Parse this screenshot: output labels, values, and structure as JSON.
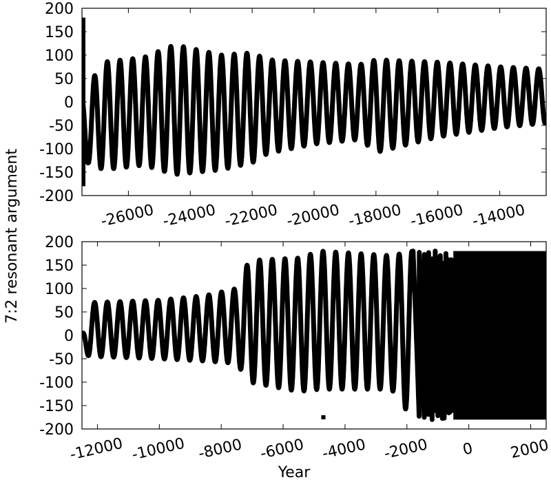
{
  "figure": {
    "ylabel": "7:2 resonant argument",
    "xlabel": "Year"
  },
  "chart_data": [
    {
      "type": "line",
      "panel": "top",
      "xlim": [
        -27500,
        -12500
      ],
      "ylim": [
        -200,
        200
      ],
      "yticks": [
        "200",
        "150",
        "100",
        "50",
        "0",
        "-50",
        "-100",
        "-150",
        "-200"
      ],
      "xticks": [
        "-26000",
        "-24000",
        "-22000",
        "-20000",
        "-18000",
        "-16000",
        "-14000"
      ],
      "xtick_values": [
        -26000,
        -24000,
        -22000,
        -20000,
        -18000,
        -16000,
        -14000
      ],
      "series": [
        {
          "color": "#000000",
          "oscillation_period_years": 410,
          "amplitude_envelope": [
            {
              "x": -27500,
              "upper": 0,
              "lower": -180
            },
            {
              "x": -27300,
              "upper": 35,
              "lower": -130
            },
            {
              "x": -26800,
              "upper": 85,
              "lower": -145
            },
            {
              "x": -25500,
              "upper": 95,
              "lower": -135
            },
            {
              "x": -24500,
              "upper": 122,
              "lower": -155
            },
            {
              "x": -23000,
              "upper": 100,
              "lower": -145
            },
            {
              "x": -22000,
              "upper": 105,
              "lower": -130
            },
            {
              "x": -21500,
              "upper": 90,
              "lower": -110
            },
            {
              "x": -20000,
              "upper": 85,
              "lower": -90
            },
            {
              "x": -18500,
              "upper": 80,
              "lower": -80
            },
            {
              "x": -18000,
              "upper": 90,
              "lower": -108
            },
            {
              "x": -16000,
              "upper": 85,
              "lower": -75
            },
            {
              "x": -14000,
              "upper": 75,
              "lower": -55
            },
            {
              "x": -12500,
              "upper": 70,
              "lower": -45
            }
          ],
          "notes_on_extremes": [
            {
              "x_range": [
                -27500,
                -27400
              ],
              "y_range": [
                -180,
                180
              ]
            }
          ]
        }
      ]
    },
    {
      "type": "line",
      "panel": "bottom",
      "xlim": [
        -12500,
        2500
      ],
      "ylim": [
        -200,
        200
      ],
      "yticks": [
        "200",
        "150",
        "100",
        "50",
        "0",
        "-50",
        "-100",
        "-150",
        "-200"
      ],
      "xticks": [
        "-12000",
        "-10000",
        "-8000",
        "-6000",
        "-4000",
        "-2000",
        "0",
        "2000"
      ],
      "xtick_values": [
        -12000,
        -10000,
        -8000,
        -6000,
        -4000,
        -2000,
        0,
        2000
      ],
      "series": [
        {
          "color": "#000000",
          "oscillation_period_years": 410,
          "amplitude_envelope": [
            {
              "x": -12500,
              "upper": 0,
              "lower": -40
            },
            {
              "x": -12200,
              "upper": 70,
              "lower": -45
            },
            {
              "x": -10000,
              "upper": 75,
              "lower": -50
            },
            {
              "x": -8500,
              "upper": 85,
              "lower": -55
            },
            {
              "x": -7500,
              "upper": 100,
              "lower": -60
            },
            {
              "x": -7100,
              "upper": 160,
              "lower": -100
            },
            {
              "x": -5500,
              "upper": 165,
              "lower": -120
            },
            {
              "x": -4800,
              "upper": 180,
              "lower": -115
            },
            {
              "x": -2500,
              "upper": 170,
              "lower": -115
            },
            {
              "x": -1800,
              "upper": 180,
              "lower": -180
            }
          ],
          "circulation_start_x": -1800,
          "dense_region_start_x": -500,
          "isolated_points": [
            {
              "x": -4700,
              "y": -175
            }
          ]
        }
      ]
    }
  ]
}
